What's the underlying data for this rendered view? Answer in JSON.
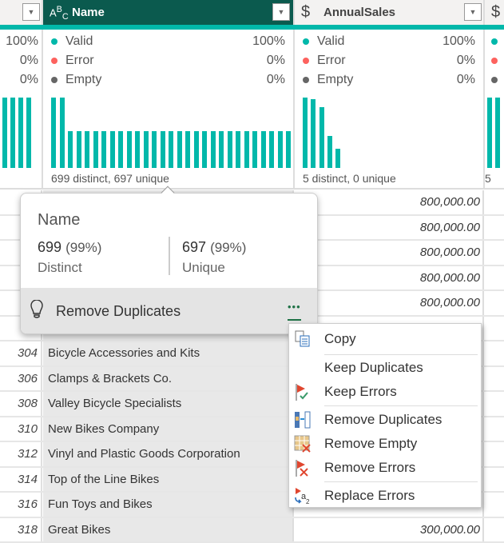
{
  "columns": [
    {
      "name": "",
      "stats": {
        "valid": "100%",
        "error": "0%",
        "empty": "0%"
      }
    },
    {
      "name": "Name",
      "type_icon": "text-type-icon",
      "type_label": "ABC",
      "stats": {
        "valid": "100%",
        "error": "0%",
        "empty": "0%"
      },
      "distribution": [
        1,
        1,
        0.52,
        0.52,
        0.52,
        0.52,
        0.52,
        0.52,
        0.52,
        0.52,
        0.52,
        0.52,
        0.52,
        0.52,
        0.52,
        0.52,
        0.52,
        0.52,
        0.52,
        0.52,
        0.52,
        0.52,
        0.52,
        0.52,
        0.52,
        0.52,
        0.52,
        0.52,
        0.52
      ],
      "summary": "699 distinct, 697 unique"
    },
    {
      "name": "AnnualSales",
      "type_icon": "currency-type-icon",
      "type_label": "$",
      "stats": {
        "valid": "100%",
        "error": "0%",
        "empty": "0%"
      },
      "distribution": [
        1,
        0.98,
        0.86,
        0.45,
        0.27
      ],
      "summary": "5 distinct, 0 unique"
    },
    {
      "name": "",
      "type_label": "$",
      "summary": "5"
    }
  ],
  "labels": {
    "valid": "Valid",
    "error": "Error",
    "empty": "Empty"
  },
  "colors": {
    "valid": "#01b8aa",
    "error": "#fd625e",
    "empty": "#666666",
    "header_selected": "#0b5a4e"
  },
  "rows": [
    {
      "n": "",
      "name": "",
      "sales": "800,000.00"
    },
    {
      "n": "",
      "name": "",
      "sales": "800,000.00"
    },
    {
      "n": "",
      "name": "",
      "sales": "800,000.00"
    },
    {
      "n": "",
      "name": "",
      "sales": "800,000.00"
    },
    {
      "n": "",
      "name": "",
      "sales": "800,000.00"
    },
    {
      "n": "",
      "name": "",
      "sales": ""
    },
    {
      "n": "304",
      "name": "Bicycle Accessories and Kits",
      "sales": ""
    },
    {
      "n": "306",
      "name": "Clamps & Brackets Co.",
      "sales": ""
    },
    {
      "n": "308",
      "name": "Valley Bicycle Specialists",
      "sales": ""
    },
    {
      "n": "310",
      "name": "New Bikes Company",
      "sales": ""
    },
    {
      "n": "312",
      "name": "Vinyl and Plastic Goods Corporation",
      "sales": ""
    },
    {
      "n": "314",
      "name": "Top of the Line Bikes",
      "sales": ""
    },
    {
      "n": "316",
      "name": "Fun Toys and Bikes",
      "sales": ""
    },
    {
      "n": "318",
      "name": "Great Bikes",
      "sales": "300,000.00"
    }
  ],
  "popup": {
    "title": "Name",
    "distinct_count": "699",
    "distinct_pct": "(99%)",
    "distinct_label": "Distinct",
    "unique_count": "697",
    "unique_pct": "(99%)",
    "unique_label": "Unique",
    "action": "Remove Duplicates",
    "more": "•••"
  },
  "menu": [
    {
      "label": "Copy",
      "icon": "copy-icon"
    },
    {
      "label": "Keep Duplicates",
      "icon": ""
    },
    {
      "label": "Keep Errors",
      "icon": "keep-errors-icon"
    },
    {
      "label": "Remove Duplicates",
      "icon": "remove-duplicates-icon"
    },
    {
      "label": "Remove Empty",
      "icon": "remove-empty-icon"
    },
    {
      "label": "Remove Errors",
      "icon": "remove-errors-icon"
    },
    {
      "label": "Replace Errors",
      "icon": "replace-errors-icon"
    }
  ]
}
